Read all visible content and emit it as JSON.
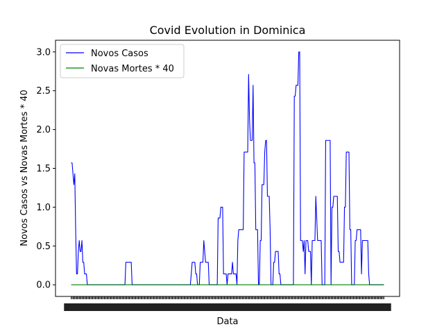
{
  "chart_data": {
    "type": "line",
    "title": "Covid Evolution in Dominica",
    "xlabel": "Data",
    "ylabel": "Novos Casos vs Novas Mortes * 40",
    "ylim": [
      -0.15,
      3.15
    ],
    "yticks": [
      "0.0",
      "0.5",
      "1.0",
      "1.5",
      "2.0",
      "2.5",
      "3.0"
    ],
    "x_count": 350,
    "xlim": [
      -17.5,
      366.5
    ],
    "x_tick_count": 350,
    "legend": "top-left",
    "grid": false,
    "series": [
      {
        "name": "Novos Casos",
        "color": "#0000ff",
        "points": [
          [
            0,
            1.57
          ],
          [
            1,
            1.57
          ],
          [
            2,
            1.43
          ],
          [
            3,
            1.29
          ],
          [
            4,
            1.43
          ],
          [
            5,
            0.71
          ],
          [
            6,
            0.14
          ],
          [
            7,
            0.14
          ],
          [
            8,
            0.43
          ],
          [
            9,
            0.57
          ],
          [
            10,
            0.43
          ],
          [
            11,
            0.43
          ],
          [
            12,
            0.57
          ],
          [
            13,
            0.29
          ],
          [
            14,
            0.29
          ],
          [
            15,
            0.14
          ],
          [
            16,
            0.14
          ],
          [
            17,
            0.14
          ],
          [
            18,
            0.0
          ],
          [
            60,
            0.0
          ],
          [
            61,
            0.29
          ],
          [
            67,
            0.29
          ],
          [
            68,
            0.0
          ],
          [
            133,
            0.0
          ],
          [
            134,
            0.14
          ],
          [
            135,
            0.29
          ],
          [
            138,
            0.29
          ],
          [
            139,
            0.14
          ],
          [
            140,
            0.14
          ],
          [
            141,
            0.0
          ],
          [
            143,
            0.0
          ],
          [
            144,
            0.29
          ],
          [
            147,
            0.29
          ],
          [
            148,
            0.57
          ],
          [
            149,
            0.43
          ],
          [
            150,
            0.29
          ],
          [
            153,
            0.29
          ],
          [
            154,
            0.0
          ],
          [
            163,
            0.0
          ],
          [
            164,
            0.86
          ],
          [
            166,
            0.86
          ],
          [
            167,
            1.0
          ],
          [
            169,
            1.0
          ],
          [
            170,
            0.14
          ],
          [
            173,
            0.14
          ],
          [
            174,
            0.0
          ],
          [
            175,
            0.14
          ],
          [
            179,
            0.14
          ],
          [
            180,
            0.29
          ],
          [
            181,
            0.14
          ],
          [
            184,
            0.14
          ],
          [
            185,
            0.0
          ],
          [
            186,
            0.57
          ],
          [
            187,
            0.71
          ],
          [
            192,
            0.71
          ],
          [
            193,
            1.71
          ],
          [
            197,
            1.71
          ],
          [
            198,
            2.71
          ],
          [
            199,
            2.14
          ],
          [
            200,
            1.86
          ],
          [
            202,
            1.86
          ],
          [
            203,
            2.57
          ],
          [
            204,
            1.57
          ],
          [
            205,
            1.57
          ],
          [
            206,
            0.71
          ],
          [
            208,
            0.71
          ],
          [
            209,
            0.0
          ],
          [
            210,
            0.0
          ],
          [
            211,
            0.57
          ],
          [
            212,
            0.57
          ],
          [
            213,
            1.29
          ],
          [
            215,
            1.29
          ],
          [
            216,
            1.71
          ],
          [
            217,
            1.86
          ],
          [
            218,
            1.86
          ],
          [
            219,
            1.14
          ],
          [
            221,
            1.14
          ],
          [
            222,
            0.71
          ],
          [
            223,
            0.0
          ],
          [
            225,
            0.0
          ],
          [
            226,
            0.29
          ],
          [
            227,
            0.29
          ],
          [
            228,
            0.43
          ],
          [
            231,
            0.43
          ],
          [
            232,
            0.14
          ],
          [
            233,
            0.14
          ],
          [
            234,
            0.0
          ],
          [
            248,
            0.0
          ],
          [
            249,
            2.43
          ],
          [
            250,
            2.43
          ],
          [
            251,
            2.57
          ],
          [
            253,
            2.57
          ],
          [
            254,
            3.0
          ],
          [
            255,
            3.0
          ],
          [
            256,
            0.57
          ],
          [
            258,
            0.57
          ],
          [
            259,
            0.43
          ],
          [
            260,
            0.57
          ],
          [
            261,
            0.14
          ],
          [
            262,
            0.57
          ],
          [
            264,
            0.57
          ],
          [
            265,
            0.43
          ],
          [
            267,
            0.43
          ],
          [
            268,
            0.0
          ],
          [
            269,
            0.57
          ],
          [
            272,
            0.57
          ],
          [
            273,
            1.14
          ],
          [
            275,
            0.57
          ],
          [
            279,
            0.57
          ],
          [
            280,
            0.0
          ],
          [
            283,
            0.0
          ],
          [
            284,
            1.86
          ],
          [
            289,
            1.86
          ],
          [
            290,
            0.0
          ],
          [
            291,
            1.0
          ],
          [
            292,
            1.0
          ],
          [
            293,
            1.14
          ],
          [
            297,
            1.14
          ],
          [
            298,
            0.43
          ],
          [
            299,
            0.43
          ],
          [
            300,
            0.29
          ],
          [
            304,
            0.29
          ],
          [
            305,
            1.0
          ],
          [
            306,
            1.0
          ],
          [
            307,
            1.71
          ],
          [
            310,
            1.71
          ],
          [
            311,
            0.71
          ],
          [
            312,
            0.71
          ],
          [
            313,
            0.0
          ],
          [
            316,
            0.0
          ],
          [
            317,
            0.57
          ],
          [
            318,
            0.57
          ],
          [
            319,
            0.71
          ],
          [
            323,
            0.71
          ],
          [
            324,
            0.14
          ],
          [
            325,
            0.57
          ],
          [
            331,
            0.57
          ],
          [
            332,
            0.14
          ],
          [
            333,
            0.0
          ],
          [
            349,
            0.0
          ]
        ]
      },
      {
        "name": "Novas Mortes * 40",
        "color": "#008000",
        "points": [
          [
            0,
            0.0
          ],
          [
            349,
            0.0
          ]
        ]
      }
    ]
  }
}
